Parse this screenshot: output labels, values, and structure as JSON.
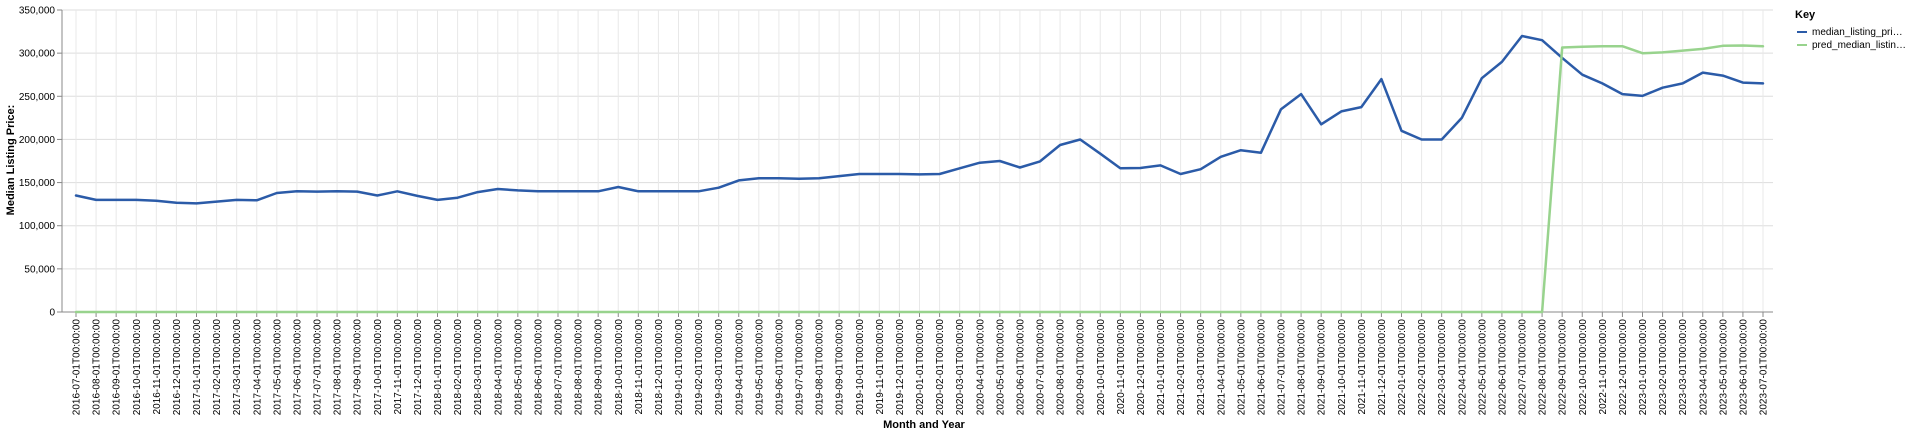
{
  "chart_data": {
    "type": "line",
    "xlabel": "Month and Year",
    "ylabel": "Median Listing Price:",
    "ylim": [
      0,
      350000
    ],
    "yticks": [
      "0",
      "50,000",
      "100,000",
      "150,000",
      "200,000",
      "250,000",
      "300,000",
      "350,000"
    ],
    "grid": true,
    "legend": {
      "title": "Key",
      "placement": "top-right"
    },
    "x": [
      "2016-07-01T00:00:00",
      "2016-08-01T00:00:00",
      "2016-09-01T00:00:00",
      "2016-10-01T00:00:00",
      "2016-11-01T00:00:00",
      "2016-12-01T00:00:00",
      "2017-01-01T00:00:00",
      "2017-02-01T00:00:00",
      "2017-03-01T00:00:00",
      "2017-04-01T00:00:00",
      "2017-05-01T00:00:00",
      "2017-06-01T00:00:00",
      "2017-07-01T00:00:00",
      "2017-08-01T00:00:00",
      "2017-09-01T00:00:00",
      "2017-10-01T00:00:00",
      "2017-11-01T00:00:00",
      "2017-12-01T00:00:00",
      "2018-01-01T00:00:00",
      "2018-02-01T00:00:00",
      "2018-03-01T00:00:00",
      "2018-04-01T00:00:00",
      "2018-05-01T00:00:00",
      "2018-06-01T00:00:00",
      "2018-07-01T00:00:00",
      "2018-08-01T00:00:00",
      "2018-09-01T00:00:00",
      "2018-10-01T00:00:00",
      "2018-11-01T00:00:00",
      "2018-12-01T00:00:00",
      "2019-01-01T00:00:00",
      "2019-02-01T00:00:00",
      "2019-03-01T00:00:00",
      "2019-04-01T00:00:00",
      "2019-05-01T00:00:00",
      "2019-06-01T00:00:00",
      "2019-07-01T00:00:00",
      "2019-08-01T00:00:00",
      "2019-09-01T00:00:00",
      "2019-10-01T00:00:00",
      "2019-11-01T00:00:00",
      "2019-12-01T00:00:00",
      "2020-01-01T00:00:00",
      "2020-02-01T00:00:00",
      "2020-03-01T00:00:00",
      "2020-04-01T00:00:00",
      "2020-05-01T00:00:00",
      "2020-06-01T00:00:00",
      "2020-07-01T00:00:00",
      "2020-08-01T00:00:00",
      "2020-09-01T00:00:00",
      "2020-10-01T00:00:00",
      "2020-11-01T00:00:00",
      "2020-12-01T00:00:00",
      "2021-01-01T00:00:00",
      "2021-02-01T00:00:00",
      "2021-03-01T00:00:00",
      "2021-04-01T00:00:00",
      "2021-05-01T00:00:00",
      "2021-06-01T00:00:00",
      "2021-07-01T00:00:00",
      "2021-08-01T00:00:00",
      "2021-09-01T00:00:00",
      "2021-10-01T00:00:00",
      "2021-11-01T00:00:00",
      "2021-12-01T00:00:00",
      "2022-01-01T00:00:00",
      "2022-02-01T00:00:00",
      "2022-03-01T00:00:00",
      "2022-04-01T00:00:00",
      "2022-05-01T00:00:00",
      "2022-06-01T00:00:00",
      "2022-07-01T00:00:00",
      "2022-08-01T00:00:00",
      "2022-09-01T00:00:00",
      "2022-10-01T00:00:00",
      "2022-11-01T00:00:00",
      "2022-12-01T00:00:00",
      "2023-01-01T00:00:00",
      "2023-02-01T00:00:00",
      "2023-03-01T00:00:00",
      "2023-04-01T00:00:00",
      "2023-05-01T00:00:00",
      "2023-06-01T00:00:00",
      "2023-07-01T00:00:00"
    ],
    "series": [
      {
        "name": "median_listing_pri…",
        "color": "#2b5ba8",
        "values": [
          135000,
          129900,
          129900,
          129900,
          128900,
          126500,
          125900,
          128000,
          129900,
          129500,
          137900,
          139900,
          139500,
          139900,
          139500,
          135000,
          139900,
          134500,
          129900,
          132500,
          139000,
          142500,
          140900,
          139900,
          139900,
          139900,
          139900,
          144900,
          139900,
          139900,
          139900,
          139900,
          144000,
          152500,
          154900,
          154900,
          154500,
          155000,
          157500,
          159900,
          159900,
          159900,
          159500,
          159900,
          166500,
          173000,
          175000,
          167500,
          174500,
          193500,
          199900,
          183500,
          166500,
          166900,
          169900,
          159900,
          165500,
          179900,
          187500,
          184500,
          235000,
          252500,
          217500,
          232500,
          237500,
          269900,
          210000,
          199900,
          199900,
          225000,
          271000,
          289900,
          319900,
          315000,
          294500,
          275000,
          264900,
          252500,
          250500,
          259900,
          264900,
          277500,
          274000,
          265900,
          264900
        ]
      },
      {
        "name": "pred_median_listin…",
        "color": "#98d38d",
        "values": [
          0,
          0,
          0,
          0,
          0,
          0,
          0,
          0,
          0,
          0,
          0,
          0,
          0,
          0,
          0,
          0,
          0,
          0,
          0,
          0,
          0,
          0,
          0,
          0,
          0,
          0,
          0,
          0,
          0,
          0,
          0,
          0,
          0,
          0,
          0,
          0,
          0,
          0,
          0,
          0,
          0,
          0,
          0,
          0,
          0,
          0,
          0,
          0,
          0,
          0,
          0,
          0,
          0,
          0,
          0,
          0,
          0,
          0,
          0,
          0,
          0,
          0,
          0,
          0,
          0,
          0,
          0,
          0,
          0,
          0,
          0,
          0,
          0,
          0,
          306500,
          307500,
          307900,
          308000,
          299900,
          300900,
          302900,
          304900,
          308500,
          308900,
          307900
        ]
      }
    ]
  }
}
